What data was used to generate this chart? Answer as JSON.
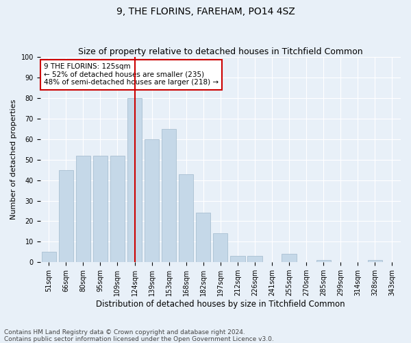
{
  "title": "9, THE FLORINS, FAREHAM, PO14 4SZ",
  "subtitle": "Size of property relative to detached houses in Titchfield Common",
  "xlabel": "Distribution of detached houses by size in Titchfield Common",
  "ylabel": "Number of detached properties",
  "categories": [
    "51sqm",
    "66sqm",
    "80sqm",
    "95sqm",
    "109sqm",
    "124sqm",
    "139sqm",
    "153sqm",
    "168sqm",
    "182sqm",
    "197sqm",
    "212sqm",
    "226sqm",
    "241sqm",
    "255sqm",
    "270sqm",
    "285sqm",
    "299sqm",
    "314sqm",
    "328sqm",
    "343sqm"
  ],
  "values": [
    5,
    45,
    52,
    52,
    52,
    80,
    60,
    65,
    43,
    24,
    14,
    3,
    3,
    0,
    4,
    0,
    1,
    0,
    0,
    1,
    0
  ],
  "bar_color": "#c5d8e8",
  "bar_edge_color": "#a0b8cc",
  "vline_x_index": 5,
  "vline_color": "#cc0000",
  "annotation_text": "9 THE FLORINS: 125sqm\n← 52% of detached houses are smaller (235)\n48% of semi-detached houses are larger (218) →",
  "annotation_box_color": "#ffffff",
  "annotation_box_edge": "#cc0000",
  "ylim": [
    0,
    100
  ],
  "yticks": [
    0,
    10,
    20,
    30,
    40,
    50,
    60,
    70,
    80,
    90,
    100
  ],
  "footnote1": "Contains HM Land Registry data © Crown copyright and database right 2024.",
  "footnote2": "Contains public sector information licensed under the Open Government Licence v3.0.",
  "bg_color": "#e8f0f8",
  "plot_bg_color": "#e8f0f8",
  "title_fontsize": 10,
  "subtitle_fontsize": 9,
  "xlabel_fontsize": 8.5,
  "ylabel_fontsize": 8,
  "tick_fontsize": 7,
  "annot_fontsize": 7.5,
  "footnote_fontsize": 6.5
}
